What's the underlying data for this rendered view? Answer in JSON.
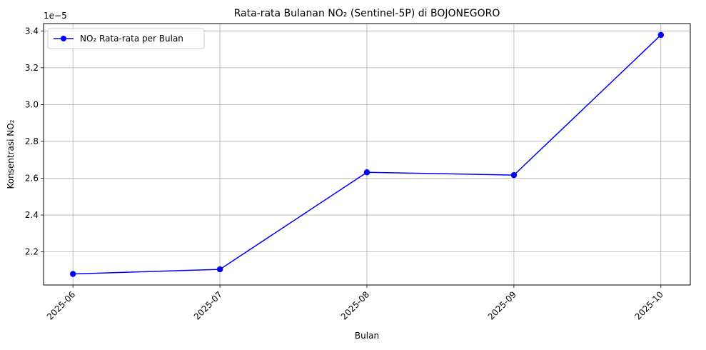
{
  "chart_data": {
    "type": "line",
    "title": "Rata-rata Bulanan NO₂ (Sentinel-5P) di BOJONEGORO",
    "xlabel": "Bulan",
    "ylabel": "Konsentrasi NO₂",
    "y_offset_label": "1e−5",
    "x": [
      "2025-06",
      "2025-07",
      "2025-08",
      "2025-09",
      "2025-10"
    ],
    "series": [
      {
        "name": "NO₂ Rata-rata per Bulan",
        "color": "#0000ff",
        "marker": "circle",
        "values": [
          2.08,
          2.105,
          2.632,
          2.617,
          3.378
        ]
      }
    ],
    "ylim": [
      2.02,
      3.44
    ],
    "yticks": [
      2.2,
      2.4,
      2.6,
      2.8,
      3.0,
      3.2,
      3.4
    ],
    "ytick_labels": [
      "2.2",
      "2.4",
      "2.6",
      "2.8",
      "3.0",
      "3.2",
      "3.4"
    ],
    "xlim": [
      -0.2,
      4.2
    ],
    "x_tick_rotation": 45,
    "grid": true,
    "legend_position": "top-left"
  }
}
